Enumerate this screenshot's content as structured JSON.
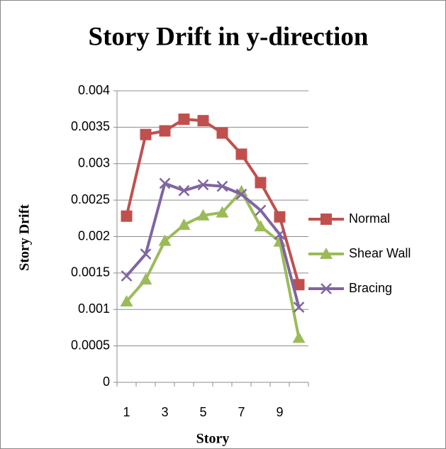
{
  "chart_data": {
    "type": "line",
    "title": "Story Drift in y-direction",
    "x_label": "Story",
    "y_label": "Story Drift",
    "categories": [
      "1",
      null,
      "3",
      null,
      "5",
      null,
      "7",
      null,
      "9",
      null
    ],
    "series": [
      {
        "name": "Normal",
        "color": "#c0504d",
        "marker": "square",
        "values": [
          0.00228,
          0.0034,
          0.00345,
          0.00361,
          0.00359,
          0.00342,
          0.00313,
          0.00274,
          0.00227,
          0.00134
        ]
      },
      {
        "name": "Shear Wall",
        "color": "#9bbb59",
        "marker": "triangle",
        "values": [
          0.00111,
          0.00141,
          0.00194,
          0.00216,
          0.00229,
          0.00233,
          0.00262,
          0.00214,
          0.00193,
          0.00061
        ]
      },
      {
        "name": "Bracing",
        "color": "#8064a2",
        "marker": "x",
        "values": [
          0.00146,
          0.00176,
          0.00273,
          0.00263,
          0.00271,
          0.00269,
          0.00258,
          0.00236,
          0.00203,
          0.00103
        ]
      }
    ],
    "ylim": [
      0,
      0.004
    ],
    "yticks": [
      0,
      0.0005,
      0.001,
      0.0015,
      0.002,
      0.0025,
      0.003,
      0.0035,
      0.004
    ],
    "grid": true,
    "legend": "right"
  }
}
